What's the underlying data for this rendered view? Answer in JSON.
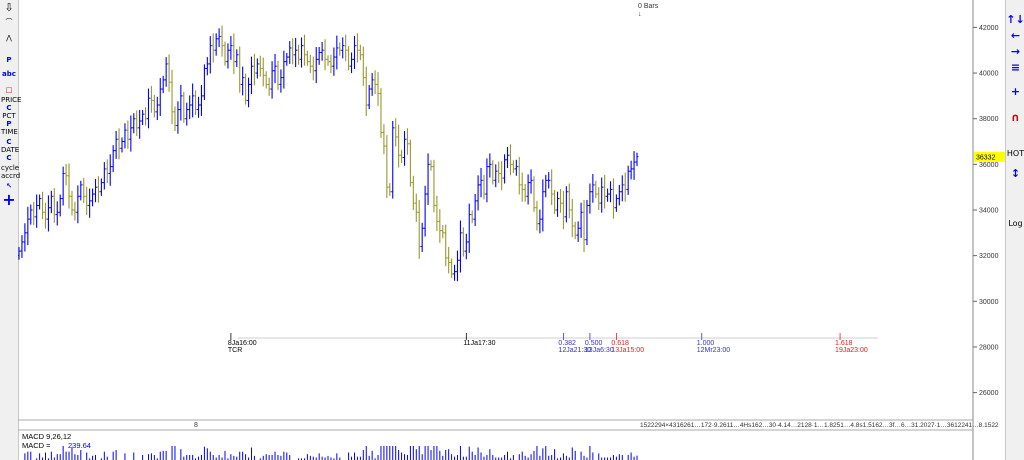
{
  "left_toolbar": {
    "items": [
      {
        "label": "⇩",
        "icon": "save-icon"
      },
      {
        "label": "⌒",
        "icon": "curve-tool-icon"
      },
      {
        "label": "⋀",
        "icon": "wave-tool-icon"
      },
      {
        "label": "P",
        "icon": "pitchfork-icon"
      },
      {
        "label": "abc",
        "icon": "text-tool-icon"
      },
      {
        "label": "□",
        "icon": "rectangle-tool-icon"
      },
      {
        "label": "PRICE",
        "icon": "price-tool"
      },
      {
        "label": "C",
        "icon": "price-c-icon"
      },
      {
        "label": "PCT",
        "icon": "pct-tool"
      },
      {
        "label": "P",
        "icon": "pct-p-icon"
      },
      {
        "label": "TIME",
        "icon": "time-tool"
      },
      {
        "label": "C",
        "icon": "time-c-icon"
      },
      {
        "label": "DATE",
        "icon": "date-tool"
      },
      {
        "label": "C",
        "icon": "date-c-icon"
      },
      {
        "label": "cycle",
        "icon": "cycle-tool"
      },
      {
        "label": "accrd",
        "icon": "accrd-tool"
      },
      {
        "label": "↖",
        "icon": "pointer-icon"
      },
      {
        "label": "+",
        "icon": "crosshair-icon"
      }
    ]
  },
  "right_toolbar": {
    "items": [
      {
        "label": "↑↓",
        "icon": "scale-updown-icon"
      },
      {
        "label": "←",
        "icon": "arrow-left-icon"
      },
      {
        "label": "→",
        "icon": "arrow-right-icon"
      },
      {
        "label": "≡",
        "icon": "bars-icon"
      },
      {
        "label": "+",
        "icon": "zoom-in-icon"
      },
      {
        "label": "∩",
        "icon": "magnet-icon"
      },
      {
        "label": "HOT",
        "icon": "hot-icon"
      },
      {
        "label": "↕",
        "icon": "expand-icon"
      },
      {
        "label": "Log",
        "icon": "log-scale-toggle"
      }
    ]
  },
  "top_annotation": {
    "line1": "0 Bars",
    "arrow": "↓"
  },
  "price_label": {
    "value": "36332",
    "bg": "#ffff00"
  },
  "colors": {
    "up": "#0000ff",
    "down": "#99992b",
    "fib_blue": "#3333cc",
    "fib_red": "#dd2222",
    "grid": "#cfcfcf"
  },
  "chart_data": {
    "type": "bar",
    "yticks": [
      26000,
      28000,
      30000,
      32000,
      34000,
      36000,
      38000,
      40000,
      42000
    ],
    "ylim": [
      24800,
      43200
    ],
    "date_markers": [
      {
        "label": "8Ja16:00",
        "sub": "TCR",
        "bar": 72
      },
      {
        "label": "11Ja17:30",
        "sub": "",
        "bar": 152
      }
    ],
    "fib_labels": [
      {
        "ratio": "0.382",
        "time": "12Ja21:30",
        "bar": 185,
        "color": "#3333cc"
      },
      {
        "ratio": "0.500",
        "time": "13Ja6:30",
        "bar": 194,
        "color": "#3333cc"
      },
      {
        "ratio": "0.618",
        "time": "13Ja15:00",
        "bar": 203,
        "color": "#dd2222"
      },
      {
        "ratio": "1.000",
        "time": "12Mr23:00",
        "bar": 232,
        "color": "#3333cc"
      },
      {
        "ratio": "1.618",
        "time": "19Ja23:00",
        "bar": 279,
        "color": "#dd2222"
      }
    ],
    "timeline_left": "8",
    "timeline_right": "1522294×4316261…172·9.2611…4Hs162…30·4.14…2128·1…1.8251…4.8s1.5162…3f…6…31.2027·1…3612241…8.1522",
    "macd": {
      "title": "MACD 9,26,12",
      "value_label": "MACD =",
      "value": "239.64"
    },
    "series_closes": [
      32200,
      32600,
      33000,
      33600,
      34000,
      33700,
      34200,
      34500,
      33900,
      33600,
      34100,
      34600,
      33800,
      33900,
      34500,
      35600,
      35500,
      34600,
      34000,
      33900,
      34600,
      35100,
      34600,
      34200,
      34400,
      34700,
      35000,
      34800,
      35200,
      35800,
      35600,
      35900,
      36600,
      37100,
      36700,
      37000,
      37500,
      37100,
      37600,
      38000,
      37600,
      37900,
      38200,
      38000,
      38900,
      38800,
      38300,
      38600,
      39300,
      39700,
      40400,
      39600,
      38300,
      37700,
      38400,
      39000,
      38000,
      38400,
      38600,
      39000,
      38400,
      38600,
      39000,
      40200,
      40400,
      41200,
      41000,
      41500,
      41600,
      41200,
      40500,
      41000,
      41200,
      40500,
      40800,
      39500,
      39800,
      38800,
      39500,
      40300,
      40000,
      40400,
      40200,
      39900,
      39500,
      39300,
      40100,
      40300,
      39500,
      39800,
      40500,
      40700,
      41100,
      40800,
      41000,
      40600,
      41200,
      40800,
      40500,
      40300,
      40100,
      40600,
      40900,
      41000,
      40600,
      40500,
      40300,
      40700,
      41100,
      41000,
      41200,
      41000,
      40300,
      40600,
      41200,
      41000,
      40800,
      39800,
      38600,
      39300,
      39700,
      39500,
      39100,
      37400,
      36800,
      35000,
      34800,
      37600,
      37200,
      36400,
      36300,
      37100,
      36900,
      35200,
      34300,
      33900,
      32400,
      33200,
      34700,
      36000,
      35900,
      34200,
      33500,
      33100,
      33000,
      31900,
      31700,
      31200,
      31300,
      31800,
      33000,
      32200,
      32600,
      33800,
      33600,
      34400,
      35100,
      35300,
      34700,
      35900,
      36000,
      35300,
      35700,
      35600,
      35400,
      36200,
      36400,
      36000,
      35800,
      35900,
      35100,
      34900,
      34600,
      35200,
      35300,
      34100,
      33400,
      33600,
      34800,
      35300,
      35300,
      34700,
      34000,
      34500,
      34300,
      33700,
      34800,
      34000,
      33300,
      32900,
      33200,
      33900,
      32700,
      34200,
      34800,
      35100,
      34700,
      34300,
      35000,
      34600,
      34700,
      34900,
      34100,
      34500,
      34800,
      35100,
      34900,
      35700,
      35800,
      36100,
      36332
    ]
  }
}
